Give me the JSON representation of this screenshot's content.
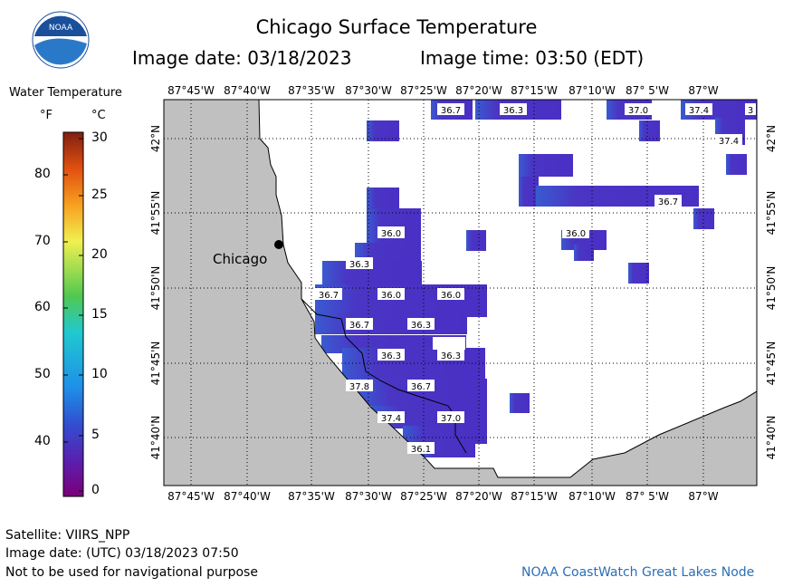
{
  "header": {
    "title": "Chicago Surface Temperature",
    "date_line": "Image date: 03/18/2023",
    "time_line": "Image time: 03:50 (EDT)"
  },
  "logo": {
    "text": "NOAA"
  },
  "legend": {
    "title": "Water Temperature",
    "unit_f": "°F",
    "unit_c": "°C",
    "f_ticks": [
      "80",
      "70",
      "60",
      "50",
      "40"
    ],
    "c_ticks": [
      "30",
      "25",
      "20",
      "15",
      "10",
      "5",
      "0"
    ]
  },
  "map": {
    "lon_labels": [
      "87°45'W",
      "87°40'W",
      "87°35'W",
      "87°30'W",
      "87°25'W",
      "87°20'W",
      "87°15'W",
      "87°10'W",
      "87° 5'W",
      "87°W"
    ],
    "lat_labels": [
      "42°N",
      "41°55'N",
      "41°50'N",
      "41°45'N",
      "41°40'N"
    ],
    "city_label": "Chicago",
    "temp_labels": [
      "36.7",
      "36.3",
      "37.0",
      "37.4",
      "3",
      "37.4",
      "36.7",
      "36.0",
      "36.0",
      "36.3",
      "36.7",
      "36.0",
      "36.0",
      "36.7",
      "36.3",
      "36.3",
      "36.3",
      "37.8",
      "36.7",
      "37.4",
      "37.0",
      "36.1"
    ]
  },
  "colors": {
    "water_temp": "#4a2fc4",
    "land": "#c0c0c0",
    "credit": "#2a6fb5"
  },
  "footer": {
    "satellite": "Satellite: VIIRS_NPP",
    "utc_date": "Image date: (UTC) 03/18/2023  07:50",
    "note": "Not to be used for navigational purpose",
    "credit": "NOAA CoastWatch Great Lakes Node"
  }
}
